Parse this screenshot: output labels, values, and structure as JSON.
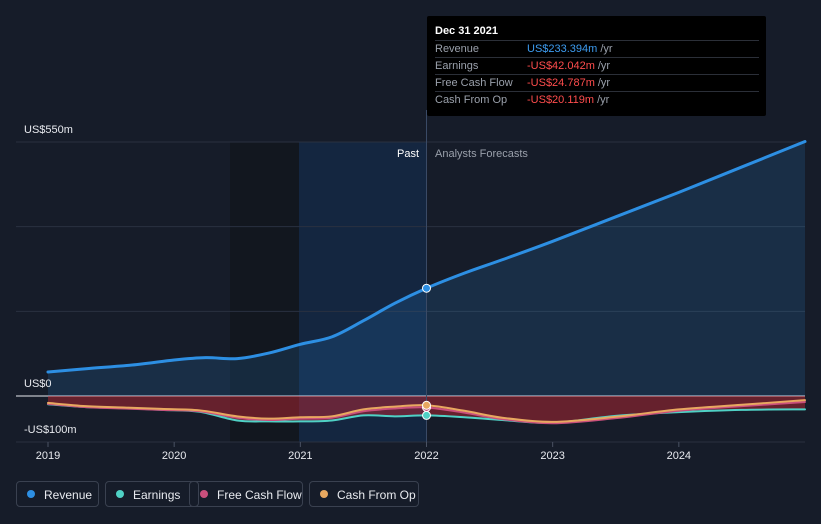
{
  "colors": {
    "revenue": "#2d8fe3",
    "earnings": "#4fd1c5",
    "free_cash_flow": "#c94f7c",
    "cash_from_op": "#e8a860",
    "negative_value": "#ff4d4d",
    "positive_value": "#3d9cf0"
  },
  "tooltip": {
    "date": "Dec 31 2021",
    "rows": [
      {
        "name": "Revenue",
        "value": "US$233.394m",
        "unit": "/yr"
      },
      {
        "name": "Earnings",
        "value": "-US$42.042m",
        "unit": "/yr"
      },
      {
        "name": "Free Cash Flow",
        "value": "-US$24.787m",
        "unit": "/yr"
      },
      {
        "name": "Cash From Op",
        "value": "-US$20.119m",
        "unit": "/yr"
      }
    ]
  },
  "legend": [
    {
      "label": "Revenue",
      "icon": "revenue-dot-icon",
      "color": "#2d8fe3"
    },
    {
      "label": "Earnings",
      "icon": "earnings-dot-icon",
      "color": "#4fd1c5"
    },
    {
      "label": "Free Cash Flow",
      "icon": "free-cash-flow-dot-icon",
      "color": "#c94f7c"
    },
    {
      "label": "Cash From Op",
      "icon": "cash-from-op-dot-icon",
      "color": "#e8a860"
    }
  ],
  "chart_data": {
    "type": "line",
    "y_tick_labels": [
      "US$550m",
      "US$0",
      "-US$100m"
    ],
    "x_tick_labels": [
      "2019",
      "2020",
      "2021",
      "2022",
      "2023",
      "2024"
    ],
    "region_labels": {
      "past": "Past",
      "forecast": "Analysts Forecasts"
    },
    "ylim": [
      -100,
      550
    ],
    "xlim": [
      2019.0,
      2025.0
    ],
    "grid": true,
    "divider_x": 2022.0,
    "series": [
      {
        "name": "Revenue",
        "points": [
          [
            2019.0,
            52
          ],
          [
            2019.3,
            59
          ],
          [
            2019.7,
            68
          ],
          [
            2020.0,
            78
          ],
          [
            2020.25,
            83
          ],
          [
            2020.5,
            81
          ],
          [
            2020.75,
            93
          ],
          [
            2021.0,
            112
          ],
          [
            2021.25,
            128
          ],
          [
            2021.5,
            163
          ],
          [
            2021.75,
            201
          ],
          [
            2022.0,
            233.394
          ],
          [
            2022.3,
            266
          ],
          [
            2022.6,
            295
          ],
          [
            2023.0,
            335
          ],
          [
            2023.5,
            388
          ],
          [
            2024.0,
            441
          ],
          [
            2024.5,
            496
          ],
          [
            2025.0,
            551
          ]
        ]
      },
      {
        "name": "Earnings",
        "points": [
          [
            2019.0,
            -18
          ],
          [
            2019.3,
            -24
          ],
          [
            2019.6,
            -26
          ],
          [
            2019.9,
            -30
          ],
          [
            2020.2,
            -34
          ],
          [
            2020.5,
            -53
          ],
          [
            2020.75,
            -55
          ],
          [
            2021.0,
            -55
          ],
          [
            2021.25,
            -53
          ],
          [
            2021.5,
            -42
          ],
          [
            2021.75,
            -44
          ],
          [
            2022.0,
            -42.042
          ],
          [
            2022.3,
            -46
          ],
          [
            2022.6,
            -52
          ],
          [
            2023.0,
            -58
          ],
          [
            2023.5,
            -43
          ],
          [
            2024.0,
            -35
          ],
          [
            2024.5,
            -30
          ],
          [
            2025.0,
            -29
          ]
        ]
      },
      {
        "name": "Free Cash Flow",
        "points": [
          [
            2019.0,
            -17
          ],
          [
            2019.3,
            -24
          ],
          [
            2019.6,
            -27
          ],
          [
            2019.9,
            -30
          ],
          [
            2020.2,
            -33
          ],
          [
            2020.5,
            -47
          ],
          [
            2020.75,
            -52
          ],
          [
            2021.0,
            -49
          ],
          [
            2021.25,
            -47
          ],
          [
            2021.5,
            -33
          ],
          [
            2021.75,
            -27
          ],
          [
            2022.0,
            -24.787
          ],
          [
            2022.3,
            -36
          ],
          [
            2022.6,
            -50
          ],
          [
            2023.0,
            -59
          ],
          [
            2023.5,
            -48
          ],
          [
            2024.0,
            -32
          ],
          [
            2024.5,
            -22
          ],
          [
            2025.0,
            -13
          ]
        ]
      },
      {
        "name": "Cash From Op",
        "points": [
          [
            2019.0,
            -15
          ],
          [
            2019.3,
            -22
          ],
          [
            2019.6,
            -25
          ],
          [
            2019.9,
            -28
          ],
          [
            2020.2,
            -31
          ],
          [
            2020.5,
            -44
          ],
          [
            2020.75,
            -49
          ],
          [
            2021.0,
            -46
          ],
          [
            2021.25,
            -44
          ],
          [
            2021.5,
            -29
          ],
          [
            2021.75,
            -23
          ],
          [
            2022.0,
            -20.119
          ],
          [
            2022.3,
            -32
          ],
          [
            2022.6,
            -47
          ],
          [
            2023.0,
            -56
          ],
          [
            2023.5,
            -45
          ],
          [
            2024.0,
            -29
          ],
          [
            2024.5,
            -19
          ],
          [
            2025.0,
            -9
          ]
        ]
      }
    ]
  }
}
